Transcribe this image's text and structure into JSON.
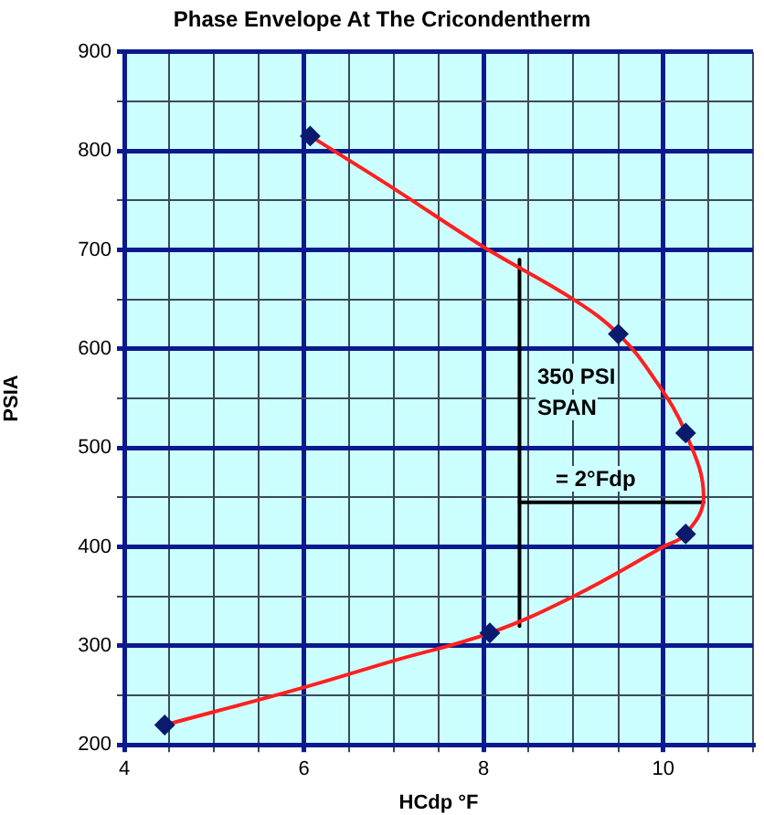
{
  "chart_data": {
    "type": "line",
    "title": "Phase Envelope At The Cricondentherm",
    "xlabel": "HCdp °F",
    "ylabel": "PSIA",
    "xlim": [
      4,
      11
    ],
    "xticks": [
      4,
      {
        "value": 4.5,
        "label": null
      },
      {
        "value": 5,
        "label": null
      },
      {
        "value": 5.5,
        "label": null
      },
      6,
      {
        "value": 6.5,
        "label": null
      },
      {
        "value": 7,
        "label": null
      },
      {
        "value": 7.5,
        "label": null
      },
      8,
      {
        "value": 8.5,
        "label": null
      },
      {
        "value": 9,
        "label": null
      },
      {
        "value": 9.5,
        "label": null
      },
      10,
      {
        "value": 10.5,
        "label": null
      },
      {
        "value": 11,
        "label": null
      }
    ],
    "ylim": [
      200,
      900
    ],
    "yticks": [
      200,
      {
        "value": 250,
        "label": null
      },
      300,
      {
        "value": 350,
        "label": null
      },
      400,
      {
        "value": 450,
        "label": null
      },
      500,
      {
        "value": 550,
        "label": null
      },
      600,
      {
        "value": 650,
        "label": null
      },
      700,
      {
        "value": 750,
        "label": null
      },
      800,
      {
        "value": 850,
        "label": null
      },
      900
    ],
    "grid": true,
    "legend": false,
    "series": [
      {
        "type": "line",
        "color": "#ff2020",
        "marker": "none",
        "line_style": "solid",
        "x": [
          6.07,
          7,
          8,
          9,
          9.5,
          9.9,
          10.25,
          10.45,
          10.25,
          10,
          9,
          8.07,
          7,
          6,
          4.45
        ],
        "values": [
          815,
          762,
          703,
          650,
          615,
          570,
          515,
          450,
          413,
          400,
          350,
          313,
          285,
          258,
          220
        ]
      },
      {
        "type": "scatter",
        "color": "#0a1a6e",
        "marker": "diamond",
        "x": [
          6.07,
          9.5,
          10.25,
          10.25,
          8.07,
          4.45
        ],
        "values": [
          815,
          615,
          515,
          413,
          313,
          220
        ]
      },
      {
        "type": "line",
        "color": "#000000",
        "marker": "none",
        "line_style": "solid",
        "x": [
          8.4,
          8.4
        ],
        "values": [
          320,
          690
        ]
      },
      {
        "type": "line",
        "color": "#000000",
        "marker": "none",
        "line_style": "solid",
        "x": [
          8.4,
          10.45
        ],
        "values": [
          445,
          445
        ]
      }
    ],
    "annotations": [
      "350 PSI",
      "SPAN",
      "= 2°Fdp"
    ]
  }
}
